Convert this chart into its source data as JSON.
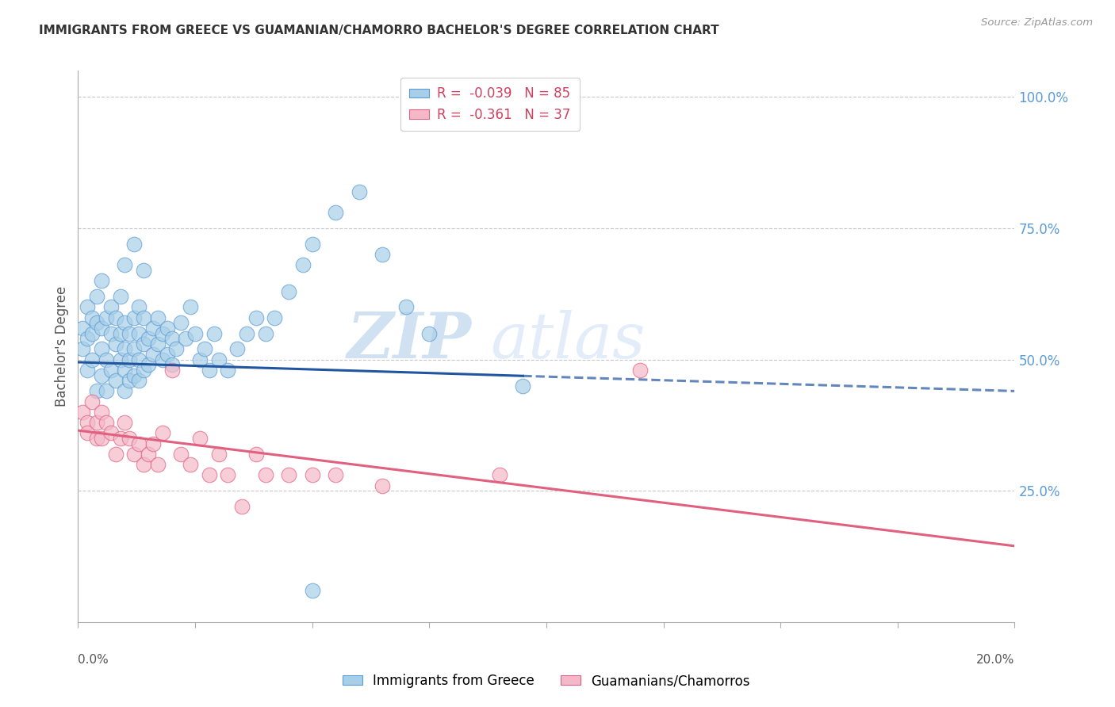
{
  "title": "IMMIGRANTS FROM GREECE VS GUAMANIAN/CHAMORRO BACHELOR'S DEGREE CORRELATION CHART",
  "source": "Source: ZipAtlas.com",
  "ylabel": "Bachelor's Degree",
  "right_ytick_labels": [
    "100.0%",
    "75.0%",
    "50.0%",
    "25.0%"
  ],
  "right_ytick_values": [
    1.0,
    0.75,
    0.5,
    0.25
  ],
  "xmin": 0.0,
  "xmax": 0.2,
  "ymin": 0.0,
  "ymax": 1.05,
  "blue_R": -0.039,
  "blue_N": 85,
  "pink_R": -0.361,
  "pink_N": 37,
  "blue_color": "#a8cfe8",
  "pink_color": "#f4b8c8",
  "blue_edge_color": "#5b9bd5",
  "pink_edge_color": "#e06080",
  "blue_line_color": "#2155a0",
  "pink_line_color": "#e06080",
  "watermark_zip": "ZIP",
  "watermark_atlas": "atlas",
  "legend_blue_label": "Immigrants from Greece",
  "legend_pink_label": "Guamanians/Chamorros",
  "blue_line_solid_end": 0.095,
  "blue_line_y_at_0": 0.495,
  "blue_line_y_at_02": 0.44,
  "pink_line_y_at_0": 0.365,
  "pink_line_y_at_02": 0.145,
  "grid_color": "#c8c8c8",
  "background_color": "#ffffff",
  "title_color": "#333333",
  "right_axis_color": "#5b9bd5",
  "blue_points_x": [
    0.001,
    0.001,
    0.002,
    0.002,
    0.002,
    0.003,
    0.003,
    0.003,
    0.004,
    0.004,
    0.004,
    0.005,
    0.005,
    0.005,
    0.005,
    0.006,
    0.006,
    0.006,
    0.007,
    0.007,
    0.007,
    0.008,
    0.008,
    0.008,
    0.009,
    0.009,
    0.009,
    0.01,
    0.01,
    0.01,
    0.01,
    0.011,
    0.011,
    0.011,
    0.012,
    0.012,
    0.012,
    0.013,
    0.013,
    0.013,
    0.013,
    0.014,
    0.014,
    0.014,
    0.015,
    0.015,
    0.016,
    0.016,
    0.017,
    0.017,
    0.018,
    0.018,
    0.019,
    0.019,
    0.02,
    0.02,
    0.021,
    0.022,
    0.023,
    0.024,
    0.025,
    0.026,
    0.027,
    0.028,
    0.029,
    0.03,
    0.032,
    0.034,
    0.036,
    0.038,
    0.04,
    0.042,
    0.045,
    0.048,
    0.05,
    0.055,
    0.06,
    0.065,
    0.07,
    0.075,
    0.01,
    0.012,
    0.014,
    0.095,
    0.05
  ],
  "blue_points_y": [
    0.56,
    0.52,
    0.54,
    0.48,
    0.6,
    0.58,
    0.5,
    0.55,
    0.57,
    0.44,
    0.62,
    0.52,
    0.47,
    0.56,
    0.65,
    0.5,
    0.58,
    0.44,
    0.6,
    0.55,
    0.48,
    0.53,
    0.46,
    0.58,
    0.62,
    0.5,
    0.55,
    0.57,
    0.52,
    0.48,
    0.44,
    0.55,
    0.5,
    0.46,
    0.58,
    0.52,
    0.47,
    0.6,
    0.55,
    0.5,
    0.46,
    0.58,
    0.53,
    0.48,
    0.54,
    0.49,
    0.56,
    0.51,
    0.58,
    0.53,
    0.55,
    0.5,
    0.56,
    0.51,
    0.54,
    0.49,
    0.52,
    0.57,
    0.54,
    0.6,
    0.55,
    0.5,
    0.52,
    0.48,
    0.55,
    0.5,
    0.48,
    0.52,
    0.55,
    0.58,
    0.55,
    0.58,
    0.63,
    0.68,
    0.72,
    0.78,
    0.82,
    0.7,
    0.6,
    0.55,
    0.68,
    0.72,
    0.67,
    0.45,
    0.06
  ],
  "pink_points_x": [
    0.001,
    0.002,
    0.002,
    0.003,
    0.004,
    0.004,
    0.005,
    0.005,
    0.006,
    0.007,
    0.008,
    0.009,
    0.01,
    0.011,
    0.012,
    0.013,
    0.014,
    0.015,
    0.016,
    0.017,
    0.018,
    0.02,
    0.022,
    0.024,
    0.026,
    0.028,
    0.03,
    0.032,
    0.035,
    0.038,
    0.04,
    0.045,
    0.05,
    0.055,
    0.065,
    0.09,
    0.12
  ],
  "pink_points_y": [
    0.4,
    0.38,
    0.36,
    0.42,
    0.35,
    0.38,
    0.4,
    0.35,
    0.38,
    0.36,
    0.32,
    0.35,
    0.38,
    0.35,
    0.32,
    0.34,
    0.3,
    0.32,
    0.34,
    0.3,
    0.36,
    0.48,
    0.32,
    0.3,
    0.35,
    0.28,
    0.32,
    0.28,
    0.22,
    0.32,
    0.28,
    0.28,
    0.28,
    0.28,
    0.26,
    0.28,
    0.48
  ]
}
